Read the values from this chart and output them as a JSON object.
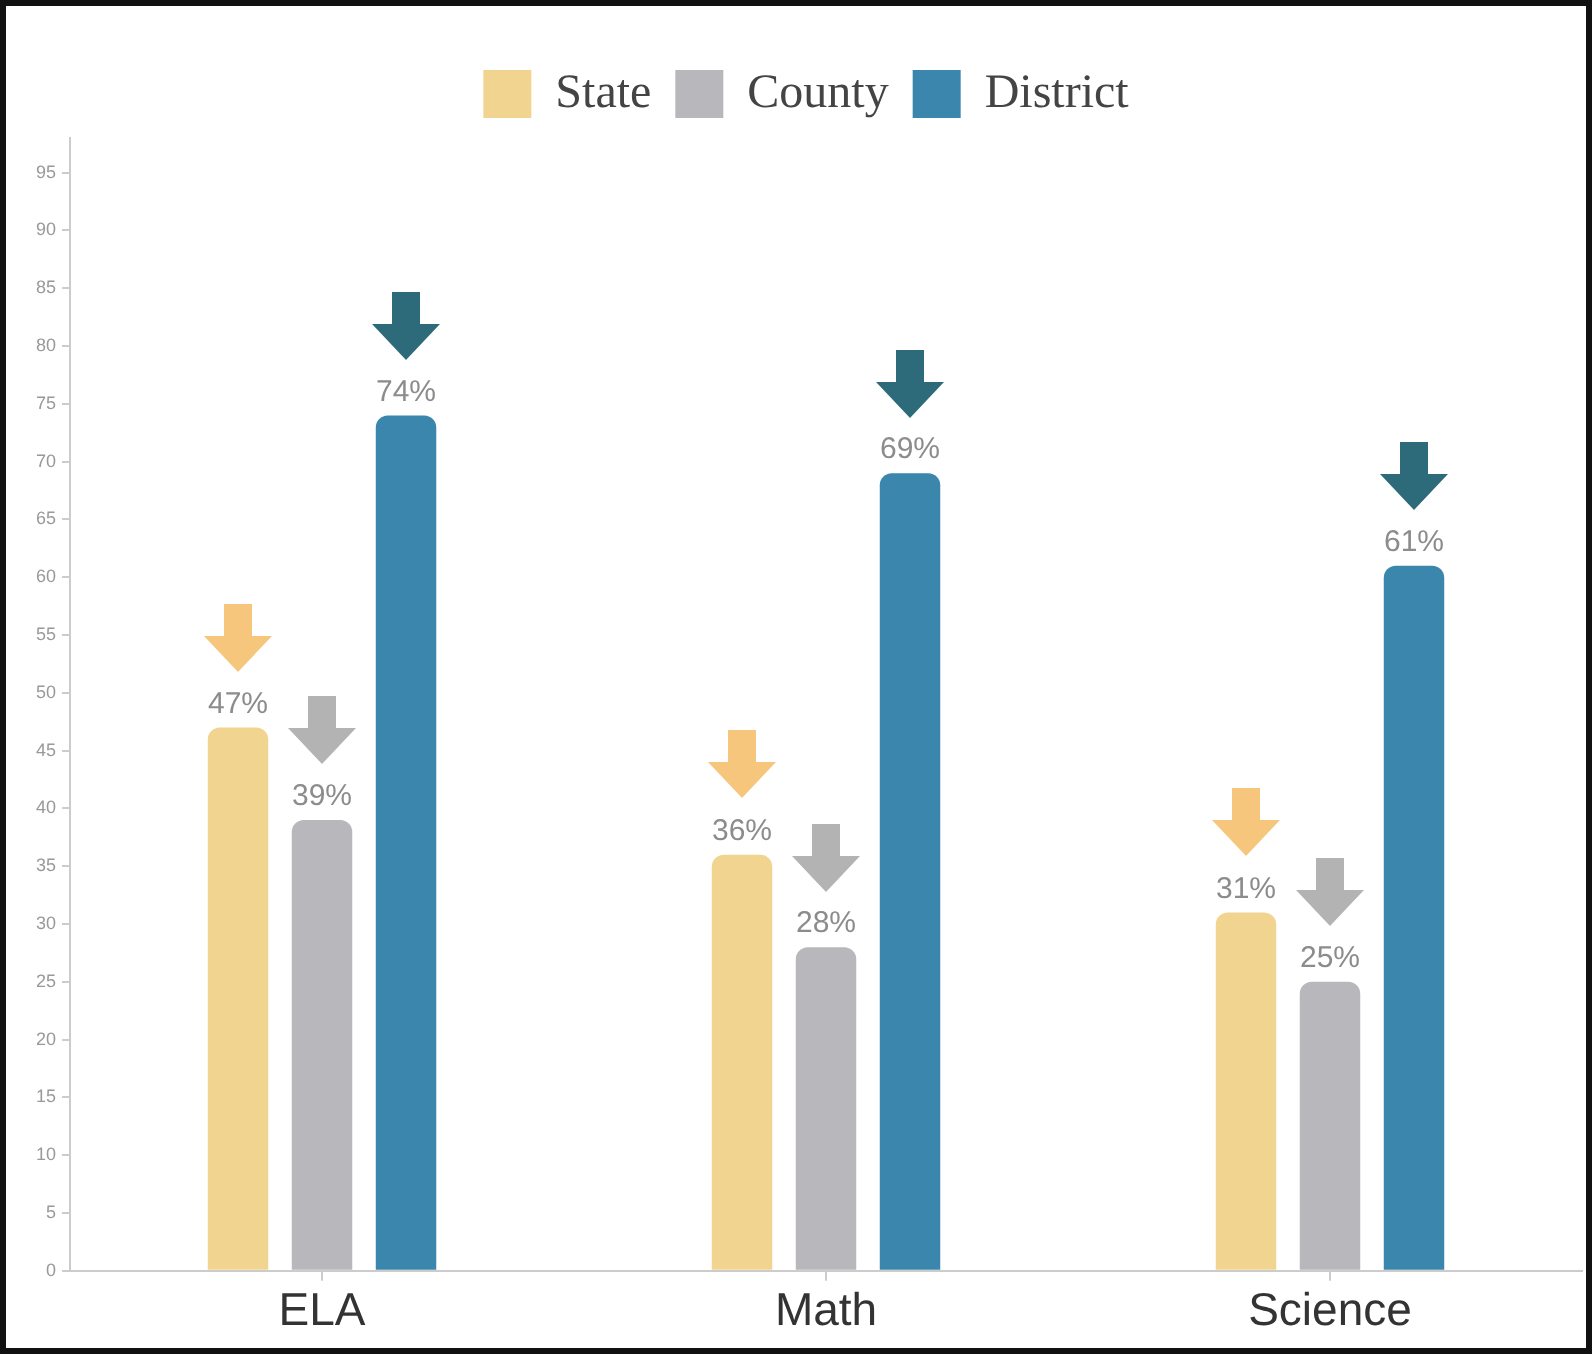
{
  "chart_data": {
    "type": "bar",
    "categories": [
      "ELA",
      "Math",
      "Science"
    ],
    "series": [
      {
        "name": "State",
        "color": "#f2d491",
        "values": [
          47,
          36,
          31
        ],
        "value_labels": [
          "47%",
          "36%",
          "31%"
        ]
      },
      {
        "name": "County",
        "color": "#b8b8bc",
        "values": [
          39,
          28,
          25
        ],
        "value_labels": [
          "39%",
          "28%",
          "25%"
        ]
      },
      {
        "name": "District",
        "color": "#3b86ac",
        "values": [
          74,
          69,
          61
        ],
        "value_labels": [
          "74%",
          "69%",
          "61%"
        ]
      }
    ],
    "ylim": [
      0,
      98
    ],
    "yticks": [
      0,
      5,
      10,
      15,
      20,
      25,
      30,
      35,
      40,
      45,
      50,
      55,
      60,
      65,
      70,
      75,
      80,
      85,
      90,
      95
    ],
    "legend": "top"
  }
}
